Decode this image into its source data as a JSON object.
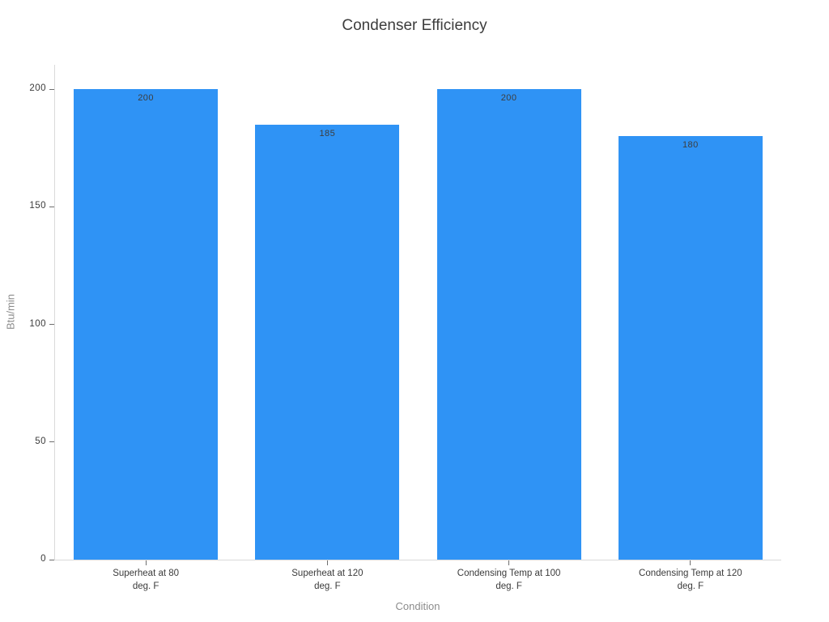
{
  "chart_data": {
    "type": "bar",
    "title": "Condenser Efficiency",
    "xlabel": "Condition",
    "ylabel": "Btu/min",
    "categories": [
      "Superheat at 80\ndeg. F",
      "Superheat at 120\ndeg. F",
      "Condensing Temp at 100\ndeg. F",
      "Condensing Temp at 120\ndeg. F"
    ],
    "values": [
      200,
      185,
      200,
      180
    ],
    "bar_value_labels": [
      "200",
      "185",
      "200",
      "180"
    ],
    "yticks": [
      0,
      50,
      100,
      150,
      200
    ],
    "ylim": [
      0,
      210
    ],
    "grid": false,
    "legend_position": "none",
    "colors": {
      "bar": "#2F93F5",
      "axis_line": "#D9D9D9",
      "tick_mark": "#6E6E6E",
      "tick_label": "#3B3B3B",
      "axis_title": "#8C8C8C",
      "title": "#3D3D3D",
      "value_label": "#3D3D3D",
      "background": "#FFFFFF"
    }
  }
}
